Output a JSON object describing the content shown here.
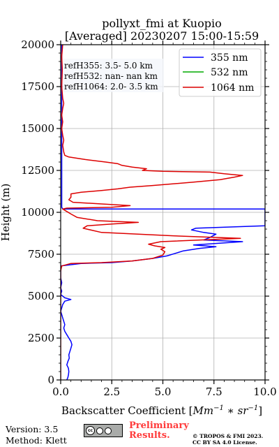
{
  "chart_data": {
    "type": "line",
    "title": "pollyxt_fmi at Kuopio",
    "subtitle": "[Averaged] 20230207 15:00-15:59",
    "xlabel": "Backscatter Coefficient [Mm^-1 * sr^-1]",
    "ylabel": "Height (m)",
    "xlim": [
      0,
      10
    ],
    "ylim": [
      0,
      20000
    ],
    "xticks": [
      "0.0",
      "2.5",
      "5.0",
      "7.5",
      "10.0"
    ],
    "yticks": [
      "0",
      "2500",
      "5000",
      "7500",
      "10000",
      "12500",
      "15000",
      "17500",
      "20000"
    ],
    "grid": true,
    "legend_position": "top-right",
    "ref_notes": [
      "refH355:  3.5- 5.0 km",
      "refH532:  nan- nan km",
      "refH1064:  2.0- 3.5 km"
    ],
    "series": [
      {
        "name": "355 nm",
        "color": "#0000ff",
        "points": [
          [
            0.3,
            0
          ],
          [
            0.35,
            150
          ],
          [
            0.38,
            300
          ],
          [
            0.4,
            500
          ],
          [
            0.38,
            700
          ],
          [
            0.3,
            900
          ],
          [
            0.35,
            1100
          ],
          [
            0.42,
            1300
          ],
          [
            0.4,
            1500
          ],
          [
            0.45,
            1700
          ],
          [
            0.5,
            1900
          ],
          [
            0.55,
            2100
          ],
          [
            0.5,
            2300
          ],
          [
            0.4,
            2500
          ],
          [
            0.3,
            2700
          ],
          [
            0.2,
            2900
          ],
          [
            0.15,
            3100
          ],
          [
            0.2,
            3300
          ],
          [
            0.15,
            3500
          ],
          [
            0.1,
            3700
          ],
          [
            0.05,
            3900
          ],
          [
            0.0,
            4100
          ],
          [
            0.05,
            4300
          ],
          [
            0.1,
            4500
          ],
          [
            0.2,
            4700
          ],
          [
            0.5,
            4800
          ],
          [
            0.2,
            4900
          ],
          [
            0.0,
            5100
          ],
          [
            0.05,
            5300
          ],
          [
            0.0,
            5500
          ],
          [
            0.05,
            5800
          ],
          [
            0.0,
            6100
          ],
          [
            0.0,
            6500
          ],
          [
            0.0,
            6800
          ],
          [
            1.0,
            6950
          ],
          [
            2.5,
            7000
          ],
          [
            3.5,
            7100
          ],
          [
            4.5,
            7250
          ],
          [
            5.2,
            7400
          ],
          [
            5.6,
            7550
          ],
          [
            6.0,
            7700
          ],
          [
            6.8,
            7850
          ],
          [
            7.6,
            7950
          ],
          [
            6.5,
            8050
          ],
          [
            8.9,
            8250
          ],
          [
            7.0,
            8350
          ],
          [
            7.3,
            8500
          ],
          [
            7.6,
            8700
          ],
          [
            7.0,
            8800
          ],
          [
            6.4,
            8950
          ],
          [
            6.6,
            9050
          ],
          [
            10.0,
            9200
          ],
          [
            10.0,
            10200
          ],
          [
            0.1,
            10200
          ],
          [
            0.05,
            10300
          ],
          [
            0.05,
            20000
          ]
        ]
      },
      {
        "name": "532 nm",
        "color": "#00aa00",
        "points": []
      },
      {
        "name": "1064 nm",
        "color": "#dd0000",
        "points": [
          [
            0.0,
            0
          ],
          [
            0.0,
            6500
          ],
          [
            0.05,
            6800
          ],
          [
            0.5,
            6950
          ],
          [
            2.0,
            7000
          ],
          [
            3.5,
            7100
          ],
          [
            4.5,
            7250
          ],
          [
            5.0,
            7450
          ],
          [
            5.1,
            7650
          ],
          [
            4.9,
            7800
          ],
          [
            5.1,
            7900
          ],
          [
            4.6,
            8000
          ],
          [
            4.3,
            8100
          ],
          [
            4.9,
            8250
          ],
          [
            8.8,
            8450
          ],
          [
            5.5,
            8600
          ],
          [
            2.0,
            8800
          ],
          [
            1.1,
            9050
          ],
          [
            1.3,
            9200
          ],
          [
            2.5,
            9300
          ],
          [
            3.8,
            9400
          ],
          [
            1.8,
            9500
          ],
          [
            0.8,
            9700
          ],
          [
            0.5,
            9900
          ],
          [
            0.3,
            10050
          ],
          [
            0.1,
            10200
          ],
          [
            0.3,
            10250
          ],
          [
            2.5,
            10300
          ],
          [
            3.4,
            10400
          ],
          [
            2.0,
            10500
          ],
          [
            0.6,
            10600
          ],
          [
            0.4,
            10750
          ],
          [
            0.5,
            10900
          ],
          [
            0.5,
            11100
          ],
          [
            1.0,
            11200
          ],
          [
            2.0,
            11300
          ],
          [
            2.8,
            11400
          ],
          [
            3.4,
            11500
          ],
          [
            4.5,
            11600
          ],
          [
            6.5,
            11800
          ],
          [
            7.8,
            11950
          ],
          [
            8.5,
            12100
          ],
          [
            8.9,
            12200
          ],
          [
            8.0,
            12300
          ],
          [
            7.3,
            12400
          ],
          [
            5.0,
            12450
          ],
          [
            4.0,
            12500
          ],
          [
            4.2,
            12600
          ],
          [
            3.5,
            12700
          ],
          [
            3.0,
            12800
          ],
          [
            2.8,
            12900
          ],
          [
            2.2,
            13000
          ],
          [
            1.2,
            13150
          ],
          [
            0.4,
            13300
          ],
          [
            0.2,
            13400
          ],
          [
            0.15,
            13600
          ],
          [
            0.1,
            14000
          ],
          [
            0.15,
            14300
          ],
          [
            0.1,
            14600
          ],
          [
            0.05,
            15000
          ],
          [
            0.1,
            15400
          ],
          [
            0.05,
            15800
          ],
          [
            0.1,
            16200
          ],
          [
            0.15,
            16500
          ],
          [
            0.1,
            16800
          ],
          [
            0.05,
            17500
          ],
          [
            0.08,
            18500
          ],
          [
            0.05,
            19300
          ],
          [
            0.1,
            20000
          ]
        ]
      }
    ]
  },
  "footer": {
    "version": "Version: 3.5",
    "method": "Method: Klett",
    "prelim_line1": "Preliminary",
    "prelim_line2": "Results.",
    "copyright_line1": "© TROPOS & FMI 2023.",
    "copyright_line2": "CC BY SA 4.0 License.",
    "cc_logo_label": "cc by sa"
  }
}
